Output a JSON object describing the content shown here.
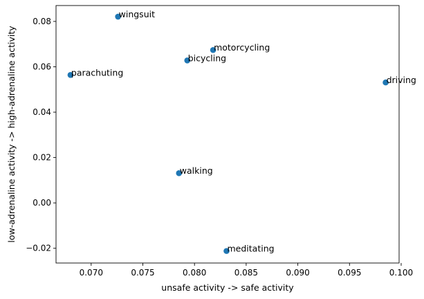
{
  "chart_data": {
    "type": "scatter",
    "title": "",
    "xlabel": "unsafe activity -> safe activity",
    "ylabel": "low-adrenaline activity -> high-adrenaline activity",
    "xlim": [
      0.0666,
      0.0998
    ],
    "ylim": [
      -0.0265,
      0.087
    ],
    "xticks": [
      0.07,
      0.075,
      0.08,
      0.085,
      0.09,
      0.095,
      0.1
    ],
    "xtick_labels": [
      "0.070",
      "0.075",
      "0.080",
      "0.085",
      "0.090",
      "0.095",
      "0.100"
    ],
    "yticks": [
      -0.02,
      0.0,
      0.02,
      0.04,
      0.06,
      0.08
    ],
    "ytick_labels": [
      "−0.02",
      "0.00",
      "0.02",
      "0.04",
      "0.06",
      "0.08"
    ],
    "grid": false,
    "marker_color": "#1f77b4",
    "points": [
      {
        "label": "wingsuit",
        "x": 0.0726,
        "y": 0.0821
      },
      {
        "label": "motorcycling",
        "x": 0.0818,
        "y": 0.0674
      },
      {
        "label": "bicycling",
        "x": 0.0793,
        "y": 0.0628
      },
      {
        "label": "parachuting",
        "x": 0.068,
        "y": 0.0564
      },
      {
        "label": "driving",
        "x": 0.0985,
        "y": 0.0531
      },
      {
        "label": "walking",
        "x": 0.0785,
        "y": 0.0131
      },
      {
        "label": "meditating",
        "x": 0.0831,
        "y": -0.0212
      }
    ]
  }
}
